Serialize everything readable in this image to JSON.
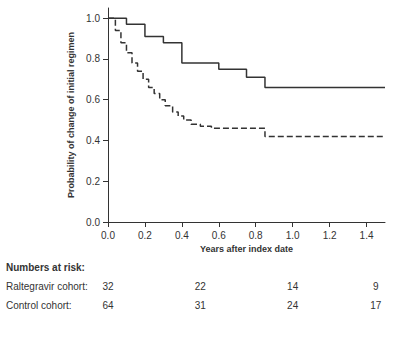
{
  "chart_data": {
    "type": "step",
    "xlabel": "Years after index date",
    "ylabel": "Probability of change of initial regimen",
    "xlim": [
      0.0,
      1.5
    ],
    "ylim": [
      0.0,
      1.05
    ],
    "xticks": [
      {
        "value": 0.0,
        "label": "0.0"
      },
      0.2,
      0.4,
      0.6,
      0.8,
      {
        "value": 1.0,
        "label": "1.0"
      },
      1.2,
      1.4
    ],
    "yticks": [
      {
        "value": 0.0,
        "label": "0.0"
      },
      0.2,
      0.4,
      0.6,
      0.8,
      {
        "value": 1.0,
        "label": "1.0"
      }
    ],
    "grid": false,
    "series": [
      {
        "color": "#333333",
        "line_style": "solid",
        "x": [
          0.0,
          0.1,
          0.2,
          0.3,
          0.4,
          0.6,
          0.75,
          0.85,
          1.05,
          1.5
        ],
        "values": [
          1.0,
          0.97,
          0.91,
          0.88,
          0.78,
          0.75,
          0.71,
          0.66,
          0.66,
          0.66
        ]
      },
      {
        "color": "#333333",
        "line_style": "dashed",
        "x": [
          0.0,
          0.04,
          0.07,
          0.1,
          0.13,
          0.16,
          0.19,
          0.22,
          0.25,
          0.28,
          0.31,
          0.35,
          0.38,
          0.41,
          0.45,
          0.5,
          0.56,
          0.62,
          0.7,
          0.85,
          0.92,
          1.05,
          1.5
        ],
        "values": [
          1.0,
          0.94,
          0.88,
          0.83,
          0.78,
          0.74,
          0.7,
          0.66,
          0.63,
          0.6,
          0.57,
          0.54,
          0.52,
          0.5,
          0.48,
          0.47,
          0.46,
          0.46,
          0.46,
          0.42,
          0.42,
          0.42,
          0.42
        ]
      }
    ],
    "risk_table": {
      "title": "Numbers at risk:",
      "x": [
        0.0,
        0.5,
        1.0,
        1.45
      ],
      "rows": [
        {
          "label": "Raltegravir cohort:",
          "values": [
            32,
            22,
            14,
            9
          ]
        },
        {
          "label": "Control cohort:",
          "values": [
            64,
            31,
            24,
            17
          ]
        }
      ]
    }
  }
}
